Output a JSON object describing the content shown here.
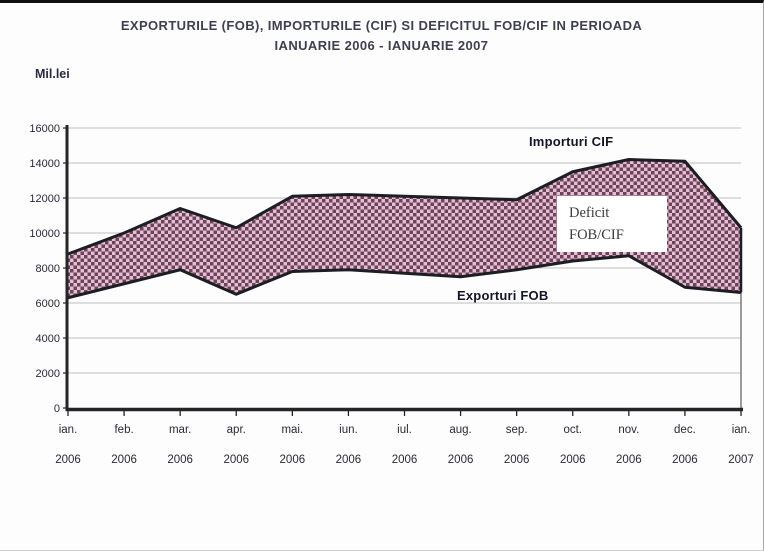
{
  "title": {
    "line1": "EXPORTURILE (FOB), IMPORTURILE (CIF) SI DEFICITUL FOB/CIF IN PERIOADA",
    "line2": "IANUARIE 2006 - IANUARIE 2007"
  },
  "y_axis_unit_label": "Mil.lei",
  "annotations": {
    "imports_label": "Importuri CIF",
    "exports_label": "Exporturi FOB",
    "deficit_box_line1": "Deficit",
    "deficit_box_line2": "FOB/CIF"
  },
  "chart_data": {
    "type": "area",
    "title": "EXPORTURILE (FOB), IMPORTURILE (CIF) SI DEFICITUL FOB/CIF IN PERIOADA IANUARIE 2006 - IANUARIE 2007",
    "unit": "Mil.lei",
    "categories": [
      {
        "month": "ian.",
        "year": "2006"
      },
      {
        "month": "feb.",
        "year": "2006"
      },
      {
        "month": "mar.",
        "year": "2006"
      },
      {
        "month": "apr.",
        "year": "2006"
      },
      {
        "month": "mai.",
        "year": "2006"
      },
      {
        "month": "iun.",
        "year": "2006"
      },
      {
        "month": "iul.",
        "year": "2006"
      },
      {
        "month": "aug.",
        "year": "2006"
      },
      {
        "month": "sep.",
        "year": "2006"
      },
      {
        "month": "oct.",
        "year": "2006"
      },
      {
        "month": "nov.",
        "year": "2006"
      },
      {
        "month": "dec.",
        "year": "2006"
      },
      {
        "month": "ian.",
        "year": "2007"
      }
    ],
    "series": [
      {
        "name": "Exporturi FOB",
        "values": [
          6300,
          7100,
          7900,
          6500,
          7800,
          7900,
          7700,
          7500,
          7900,
          8400,
          8700,
          6900,
          6600
        ]
      },
      {
        "name": "Importuri CIF",
        "values": [
          8800,
          10000,
          11400,
          10300,
          12100,
          12200,
          12100,
          12000,
          11900,
          13500,
          14200,
          14100,
          10300
        ]
      }
    ],
    "deficit_note": "Deficit FOB/CIF = area between Importuri CIF and Exporturi FOB",
    "ylim": [
      0,
      16000
    ],
    "yticks": [
      0,
      2000,
      4000,
      6000,
      8000,
      10000,
      12000,
      14000,
      16000
    ],
    "grid": "horizontal",
    "legend_position": "in-plot text annotations",
    "colors": {
      "checker_light": "#e4bed4",
      "checker_dark": "#6b4458",
      "line": "#1d1d24",
      "grid": "#bfbfbf",
      "axis": "#252528",
      "tick_text": "#2a2a3a"
    }
  }
}
